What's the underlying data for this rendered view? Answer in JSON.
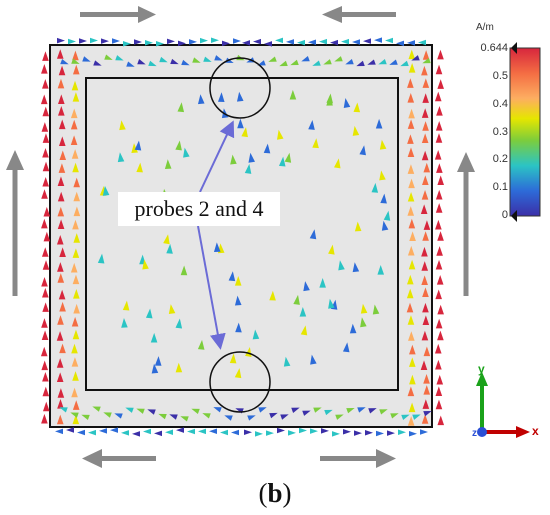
{
  "figure": {
    "label": "probes 2 and 4",
    "caption": {
      "open": "(",
      "letter": "b",
      "close": ")"
    }
  },
  "colorbar": {
    "unit": "A/m",
    "ticks": [
      "0.644",
      "0.5",
      "0.4",
      "0.3",
      "0.2",
      "0.1",
      "0"
    ],
    "colors": [
      "#d7263d",
      "#f46d43",
      "#fdae61",
      "#e6e600",
      "#7ccd3c",
      "#2bc4c4",
      "#2d6bd8",
      "#3b2fa8"
    ]
  },
  "axes": {
    "x": "x",
    "y": "y",
    "z": "z"
  },
  "colors": {
    "arrow": "#888888",
    "frame": "#111111",
    "field_bg": "#e6e6e6",
    "x_axis": "#c00000",
    "y_axis": "#1aa21a",
    "z_axis": "#2a4fd6",
    "probe_arrow": "#6b6bd6"
  }
}
